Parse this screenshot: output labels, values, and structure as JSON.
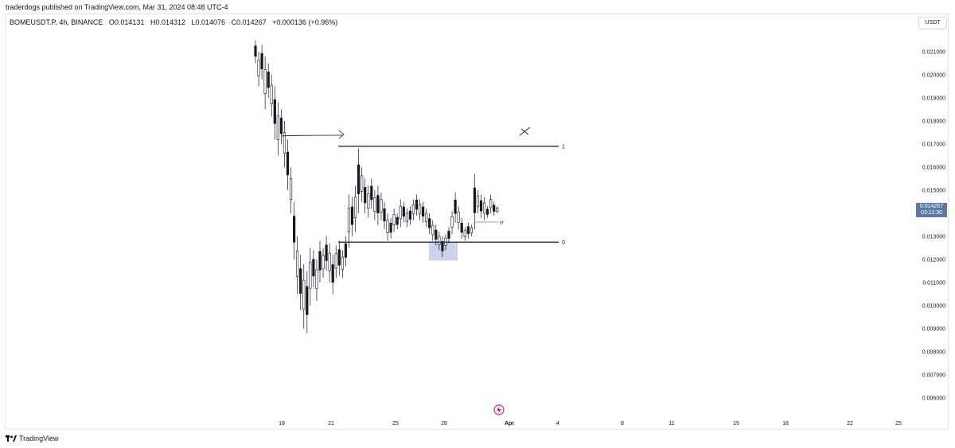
{
  "header": {
    "published": "traderdogs published on TradingView.com, Mar 31, 2024 08:48 UTC-4"
  },
  "legend": {
    "symbol": "BOMEUSDT.P, 4h, BINANCE",
    "open": "O0.014131",
    "high": "H0.014312",
    "low": "L0.014076",
    "close": "C0.014267",
    "change": "+0.000136 (+0.96%)"
  },
  "currency": "USDT",
  "last_price": {
    "value": "0.014267",
    "countdown": "03:11:30",
    "color": "#5b7ba5"
  },
  "fib_labels": {
    "top": "1",
    "bottom": "0"
  },
  "annotation_text": "rr",
  "footer": {
    "brand": "TradingView"
  },
  "colors": {
    "candle": "#131722",
    "grid": "#ffffff",
    "zone_fill": "#a9b8e0",
    "rr_line": "#e05a5a",
    "lightning": "#c0267e"
  },
  "chart_data": {
    "type": "candlestick",
    "title": "",
    "xlabel": "",
    "ylabel": "",
    "y_ticks": [
      "0.021000",
      "0.020000",
      "0.019000",
      "0.018000",
      "0.017000",
      "0.016000",
      "0.015000",
      "0.013000",
      "0.012000",
      "0.011000",
      "0.010000",
      "0.009000",
      "0.008000",
      "0.007000",
      "0.006000"
    ],
    "x_ticks": [
      "18",
      "21",
      "25",
      "28",
      "Apr",
      "4",
      "8",
      "11",
      "15",
      "18",
      "22",
      "25"
    ],
    "ylim": [
      0.0055,
      0.0215
    ],
    "levels": {
      "fib_1": 0.0169,
      "fib_0": 0.01275
    },
    "demand_zone": {
      "y_low": 0.01195,
      "y_high": 0.01275
    },
    "candles_hl": [
      [
        0.0215,
        0.0205
      ],
      [
        0.021,
        0.0195
      ],
      [
        0.0213,
        0.0198
      ],
      [
        0.0208,
        0.0185
      ],
      [
        0.0205,
        0.019
      ],
      [
        0.02,
        0.0182
      ],
      [
        0.0195,
        0.0172
      ],
      [
        0.0188,
        0.0165
      ],
      [
        0.0185,
        0.017
      ],
      [
        0.018,
        0.016
      ],
      [
        0.0172,
        0.015
      ],
      [
        0.016,
        0.014
      ],
      [
        0.0145,
        0.012
      ],
      [
        0.013,
        0.0105
      ],
      [
        0.0122,
        0.0098
      ],
      [
        0.0118,
        0.009
      ],
      [
        0.0115,
        0.0088
      ],
      [
        0.0125,
        0.01
      ],
      [
        0.0124,
        0.0108
      ],
      [
        0.012,
        0.0102
      ],
      [
        0.0128,
        0.011
      ],
      [
        0.0125,
        0.0112
      ],
      [
        0.013,
        0.0115
      ],
      [
        0.0127,
        0.011
      ],
      [
        0.0122,
        0.0105
      ],
      [
        0.0126,
        0.0112
      ],
      [
        0.0128,
        0.0113
      ],
      [
        0.0124,
        0.0112
      ],
      [
        0.013,
        0.0117
      ],
      [
        0.0148,
        0.0125
      ],
      [
        0.0147,
        0.013
      ],
      [
        0.0152,
        0.0132
      ],
      [
        0.0168,
        0.014
      ],
      [
        0.016,
        0.0145
      ],
      [
        0.0155,
        0.014
      ],
      [
        0.0152,
        0.0138
      ],
      [
        0.0155,
        0.0142
      ],
      [
        0.015,
        0.0137
      ],
      [
        0.0152,
        0.0135
      ],
      [
        0.0149,
        0.0137
      ],
      [
        0.0145,
        0.0133
      ],
      [
        0.014,
        0.0128
      ],
      [
        0.0138,
        0.0129
      ],
      [
        0.0142,
        0.0132
      ],
      [
        0.014,
        0.0133
      ],
      [
        0.0146,
        0.0134
      ],
      [
        0.0145,
        0.0136
      ],
      [
        0.0142,
        0.0134
      ],
      [
        0.0143,
        0.0135
      ],
      [
        0.0146,
        0.0137
      ],
      [
        0.0148,
        0.0139
      ],
      [
        0.0146,
        0.0137
      ],
      [
        0.0145,
        0.0136
      ],
      [
        0.0142,
        0.0134
      ],
      [
        0.014,
        0.0131
      ],
      [
        0.0137,
        0.0128
      ],
      [
        0.0135,
        0.0126
      ],
      [
        0.0132,
        0.0124
      ],
      [
        0.013,
        0.0121
      ],
      [
        0.0131,
        0.0124
      ],
      [
        0.0134,
        0.0127
      ],
      [
        0.0141,
        0.0131
      ],
      [
        0.0149,
        0.0136
      ],
      [
        0.0143,
        0.0133
      ],
      [
        0.0138,
        0.0129
      ],
      [
        0.0134,
        0.0128
      ],
      [
        0.0136,
        0.0129
      ],
      [
        0.0135,
        0.013
      ],
      [
        0.0157,
        0.0133
      ],
      [
        0.015,
        0.014
      ],
      [
        0.0148,
        0.0138
      ],
      [
        0.0147,
        0.0137
      ],
      [
        0.0143,
        0.0138
      ],
      [
        0.0148,
        0.014
      ],
      [
        0.0145,
        0.0139
      ],
      [
        0.0143,
        0.014
      ]
    ]
  }
}
